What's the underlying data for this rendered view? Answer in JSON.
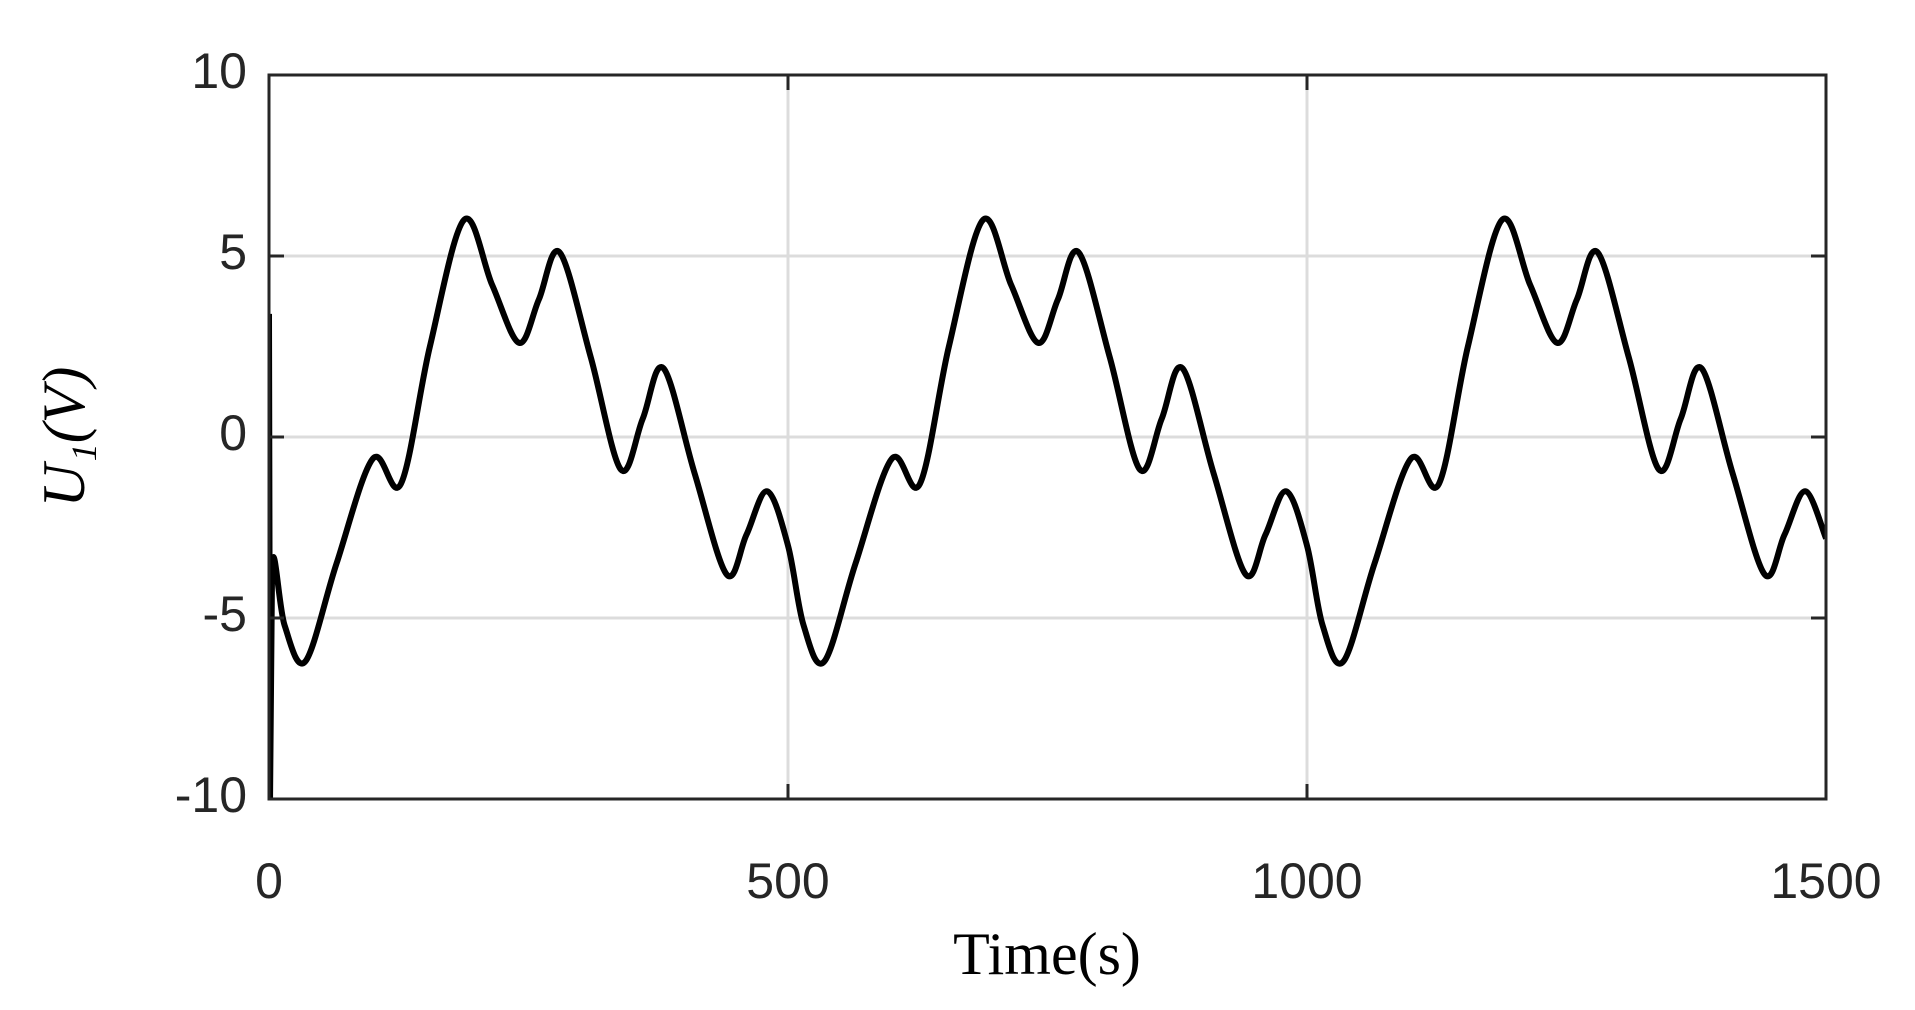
{
  "chart_data": {
    "type": "line",
    "xlabel": "Time(s)",
    "ylabel": "U₁(V)",
    "x": [
      0,
      1,
      3,
      15,
      35,
      65,
      100,
      127,
      155,
      188,
      215,
      241,
      260,
      280,
      310,
      339,
      360,
      380,
      410,
      441,
      460,
      480,
      500,
      515,
      535,
      565,
      600,
      627,
      655,
      688,
      715,
      741,
      760,
      780,
      810,
      839,
      860,
      880,
      910,
      941,
      960,
      980,
      1000,
      1015,
      1035,
      1065,
      1100,
      1127,
      1155,
      1188,
      1215,
      1241,
      1260,
      1280,
      1310,
      1339,
      1360,
      1380,
      1410,
      1441,
      1460,
      1480,
      1500
    ],
    "series": [
      {
        "color": "#000000",
        "values": [
          3.4,
          -10,
          -3.5,
          -5.2,
          -6.2,
          -3.5,
          -0.6,
          -1.3,
          2.5,
          6.0,
          4.2,
          2.6,
          3.8,
          5.1,
          2.2,
          -0.9,
          0.5,
          1.9,
          -1.0,
          -3.8,
          -2.7,
          -1.5,
          -3.0,
          -5.2,
          -6.2,
          -3.5,
          -0.6,
          -1.3,
          2.5,
          6.0,
          4.2,
          2.6,
          3.8,
          5.1,
          2.2,
          -0.9,
          0.5,
          1.9,
          -1.0,
          -3.8,
          -2.7,
          -1.5,
          -3.0,
          -5.2,
          -6.2,
          -3.5,
          -0.6,
          -1.3,
          2.5,
          6.0,
          4.2,
          2.6,
          3.8,
          5.1,
          2.2,
          -0.9,
          0.5,
          1.9,
          -1.0,
          -3.8,
          -2.7,
          -1.5,
          -2.8
        ]
      }
    ],
    "xlim": [
      0,
      1500
    ],
    "xticks": [
      0,
      500,
      1000,
      1500
    ],
    "ylim": [
      -10,
      10
    ],
    "yticks": [
      -10,
      -5,
      0,
      5,
      10
    ],
    "grid": true
  }
}
